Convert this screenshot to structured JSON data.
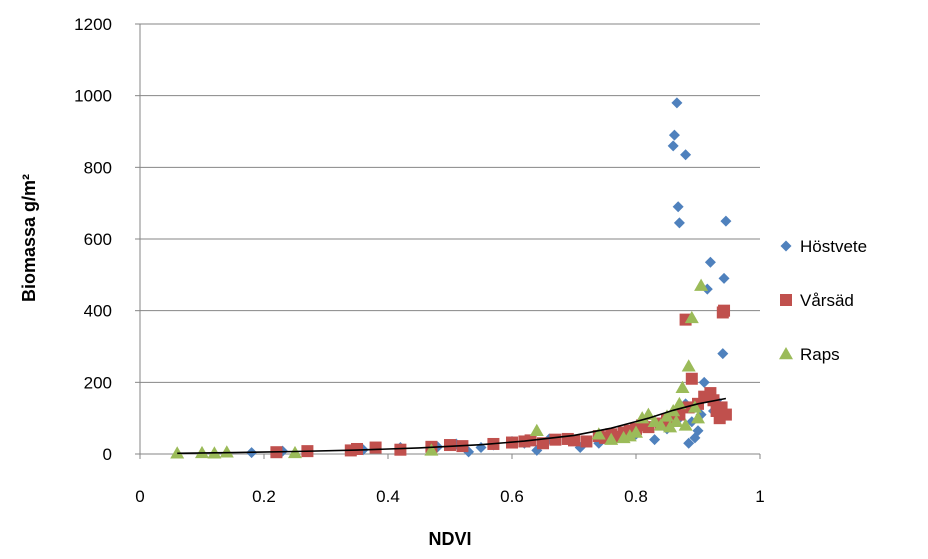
{
  "chart_data": {
    "type": "scatter",
    "title": "",
    "xlabel": "NDVI",
    "ylabel": "Biomassa g/m²",
    "xlim": [
      0,
      1
    ],
    "ylim": [
      0,
      1200
    ],
    "x_ticks": [
      "0",
      "0.2",
      "0.4",
      "0.6",
      "0.8",
      "1"
    ],
    "x_tick_values": [
      0,
      0.2,
      0.4,
      0.6,
      0.8,
      1
    ],
    "y_ticks": [
      "0",
      "200",
      "400",
      "600",
      "800",
      "1000",
      "1200"
    ],
    "y_tick_values": [
      0,
      200,
      400,
      600,
      800,
      1000,
      1200
    ],
    "grid": "horizontal",
    "legend_position": "right",
    "series": [
      {
        "name": "Höstvete",
        "marker": "diamond",
        "color": "#4F81BD",
        "points": [
          [
            0.18,
            4
          ],
          [
            0.23,
            8
          ],
          [
            0.36,
            12
          ],
          [
            0.42,
            18
          ],
          [
            0.48,
            20
          ],
          [
            0.51,
            28
          ],
          [
            0.53,
            6
          ],
          [
            0.55,
            18
          ],
          [
            0.57,
            25
          ],
          [
            0.6,
            35
          ],
          [
            0.62,
            30
          ],
          [
            0.64,
            10
          ],
          [
            0.66,
            42
          ],
          [
            0.71,
            18
          ],
          [
            0.74,
            30
          ],
          [
            0.8,
            55
          ],
          [
            0.83,
            40
          ],
          [
            0.85,
            70
          ],
          [
            0.86,
            860
          ],
          [
            0.862,
            890
          ],
          [
            0.866,
            980
          ],
          [
            0.868,
            690
          ],
          [
            0.87,
            645
          ],
          [
            0.88,
            835
          ],
          [
            0.885,
            30
          ],
          [
            0.89,
            90
          ],
          [
            0.895,
            45
          ],
          [
            0.9,
            65
          ],
          [
            0.905,
            110
          ],
          [
            0.91,
            200
          ],
          [
            0.915,
            460
          ],
          [
            0.92,
            535
          ],
          [
            0.925,
            120
          ],
          [
            0.94,
            280
          ],
          [
            0.942,
            490
          ],
          [
            0.945,
            650
          ],
          [
            0.93,
            150
          ],
          [
            0.87,
            100
          ],
          [
            0.88,
            140
          ]
        ]
      },
      {
        "name": "Vårsäd",
        "marker": "square",
        "color": "#C0504D",
        "points": [
          [
            0.22,
            5
          ],
          [
            0.27,
            8
          ],
          [
            0.34,
            10
          ],
          [
            0.35,
            14
          ],
          [
            0.38,
            18
          ],
          [
            0.42,
            12
          ],
          [
            0.47,
            20
          ],
          [
            0.5,
            25
          ],
          [
            0.52,
            22
          ],
          [
            0.57,
            28
          ],
          [
            0.6,
            32
          ],
          [
            0.62,
            35
          ],
          [
            0.63,
            38
          ],
          [
            0.65,
            30
          ],
          [
            0.67,
            40
          ],
          [
            0.69,
            42
          ],
          [
            0.7,
            38
          ],
          [
            0.72,
            35
          ],
          [
            0.74,
            50
          ],
          [
            0.75,
            45
          ],
          [
            0.76,
            55
          ],
          [
            0.77,
            48
          ],
          [
            0.78,
            60
          ],
          [
            0.79,
            65
          ],
          [
            0.8,
            70
          ],
          [
            0.81,
            80
          ],
          [
            0.82,
            75
          ],
          [
            0.84,
            85
          ],
          [
            0.85,
            95
          ],
          [
            0.86,
            100
          ],
          [
            0.87,
            110
          ],
          [
            0.88,
            375
          ],
          [
            0.885,
            130
          ],
          [
            0.89,
            210
          ],
          [
            0.9,
            140
          ],
          [
            0.91,
            160
          ],
          [
            0.92,
            170
          ],
          [
            0.925,
            150
          ],
          [
            0.93,
            120
          ],
          [
            0.935,
            100
          ],
          [
            0.94,
            395
          ],
          [
            0.942,
            400
          ],
          [
            0.938,
            130
          ],
          [
            0.945,
            110
          ]
        ]
      },
      {
        "name": "Raps",
        "marker": "triangle",
        "color": "#9BBB59",
        "points": [
          [
            0.06,
            2
          ],
          [
            0.1,
            3
          ],
          [
            0.12,
            2
          ],
          [
            0.14,
            5
          ],
          [
            0.25,
            3
          ],
          [
            0.47,
            10
          ],
          [
            0.64,
            65
          ],
          [
            0.74,
            55
          ],
          [
            0.76,
            40
          ],
          [
            0.78,
            45
          ],
          [
            0.79,
            50
          ],
          [
            0.8,
            60
          ],
          [
            0.81,
            100
          ],
          [
            0.82,
            110
          ],
          [
            0.83,
            90
          ],
          [
            0.84,
            80
          ],
          [
            0.85,
            105
          ],
          [
            0.86,
            120
          ],
          [
            0.87,
            140
          ],
          [
            0.875,
            185
          ],
          [
            0.88,
            80
          ],
          [
            0.885,
            245
          ],
          [
            0.89,
            380
          ],
          [
            0.895,
            130
          ],
          [
            0.9,
            100
          ],
          [
            0.905,
            470
          ],
          [
            0.865,
            90
          ],
          [
            0.855,
            75
          ]
        ]
      }
    ],
    "trendline": {
      "type": "exponential",
      "color": "#000000",
      "points": [
        [
          0.06,
          2
        ],
        [
          0.15,
          4
        ],
        [
          0.25,
          7
        ],
        [
          0.35,
          11
        ],
        [
          0.45,
          17
        ],
        [
          0.55,
          26
        ],
        [
          0.62,
          36
        ],
        [
          0.7,
          52
        ],
        [
          0.76,
          72
        ],
        [
          0.82,
          100
        ],
        [
          0.86,
          122
        ],
        [
          0.9,
          140
        ],
        [
          0.945,
          155
        ]
      ]
    }
  }
}
